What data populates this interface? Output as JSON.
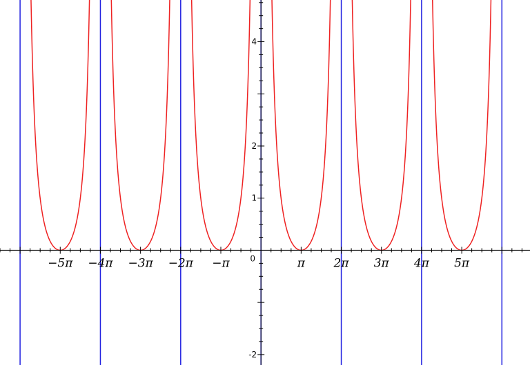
{
  "chart_data": {
    "type": "line",
    "title": "",
    "xlabel": "",
    "ylabel": "",
    "xlim": [
      -6.5,
      6.7
    ],
    "ylim": [
      -2.2,
      4.8
    ],
    "x_unit": "pi",
    "grid": false,
    "legend": "none",
    "colors": {
      "curve": "#ee2222",
      "asymptote": "#2020e0",
      "axis": "#000000"
    },
    "x_ticks": [
      {
        "value": -5,
        "label": "−5π"
      },
      {
        "value": -4,
        "label": "−4π"
      },
      {
        "value": -3,
        "label": "−3π"
      },
      {
        "value": -2,
        "label": "−2π"
      },
      {
        "value": -1,
        "label": "−π"
      },
      {
        "value": 0,
        "label": "0"
      },
      {
        "value": 1,
        "label": "π"
      },
      {
        "value": 2,
        "label": "2π"
      },
      {
        "value": 3,
        "label": "3π"
      },
      {
        "value": 4,
        "label": "4π"
      },
      {
        "value": 5,
        "label": "5π"
      }
    ],
    "y_ticks": [
      {
        "value": -2,
        "label": "-2"
      },
      {
        "value": 1,
        "label": "1"
      },
      {
        "value": 2,
        "label": "2"
      },
      {
        "value": 4,
        "label": "4"
      }
    ],
    "asymptotes_x": [
      -6,
      -4,
      -2,
      0,
      2,
      4,
      6
    ],
    "branches": [
      {
        "vertex_x": -5,
        "vertex_y": 0,
        "from_x": -6,
        "to_x": -4
      },
      {
        "vertex_x": -3,
        "vertex_y": 0,
        "from_x": -4,
        "to_x": -2
      },
      {
        "vertex_x": -1,
        "vertex_y": 0,
        "from_x": -2,
        "to_x": 0
      },
      {
        "vertex_x": 1,
        "vertex_y": 0,
        "from_x": 0,
        "to_x": 2
      },
      {
        "vertex_x": 3,
        "vertex_y": 0,
        "from_x": 2,
        "to_x": 4
      },
      {
        "vertex_x": 5,
        "vertex_y": 0,
        "from_x": 4,
        "to_x": 6
      }
    ]
  }
}
